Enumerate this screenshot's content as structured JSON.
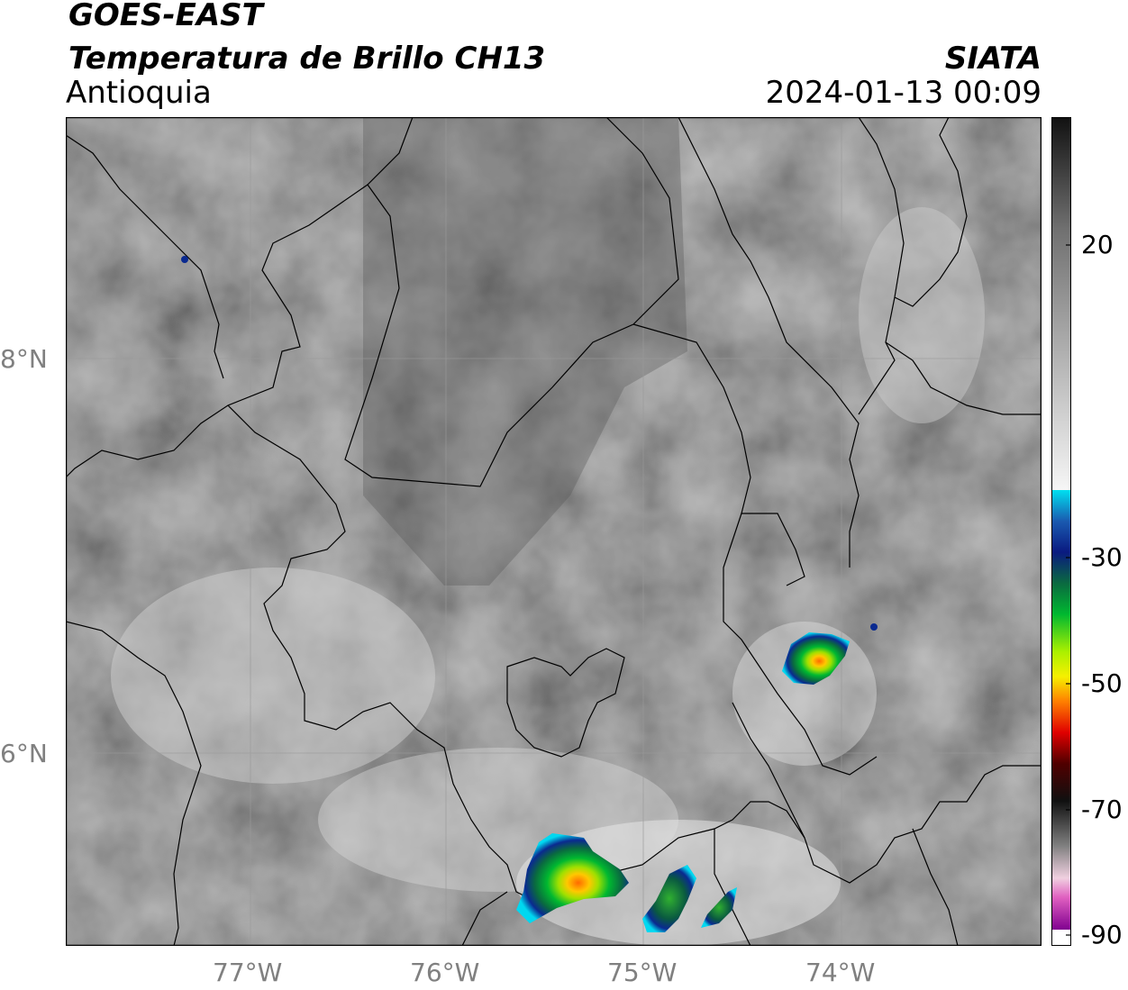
{
  "header": {
    "satellite": "GOES-EAST",
    "product": "Temperatura de Brillo CH13",
    "region": "Antioquia",
    "organization": "SIATA",
    "datetime": "2024-01-13 00:09"
  },
  "map": {
    "lat_labels": [
      "8°N",
      "6°N"
    ],
    "lon_labels": [
      "77°W",
      "76°W",
      "75°W",
      "74°W"
    ],
    "colors": {
      "background_gray": "#6f6f6f",
      "border": "#000000",
      "grid": "#9a9a9a"
    }
  },
  "colorbar": {
    "tick_labels": [
      "20",
      "-30",
      "-50",
      "-70",
      "-90"
    ],
    "colors": {
      "gray_top": "#111111",
      "gray_white": "#f6f6f6",
      "cyan": "#00e0f0",
      "blue": "#0a1a80",
      "green": "#00b830",
      "yellow": "#f6f000",
      "orange": "#ff8000",
      "red": "#e00000",
      "dark": "#101010",
      "pink": "#e060c0",
      "purple": "#800090"
    }
  }
}
